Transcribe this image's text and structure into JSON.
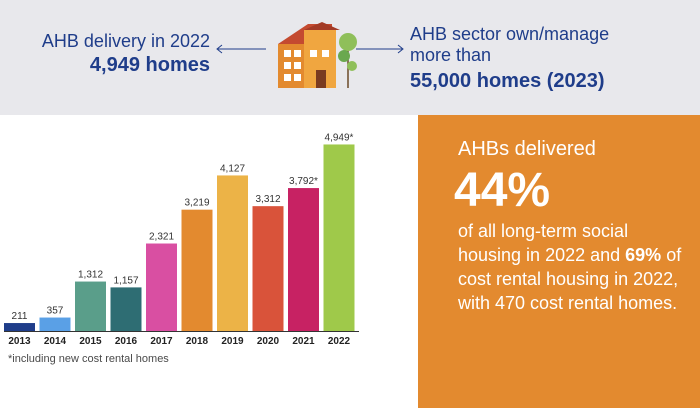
{
  "header": {
    "delivery_label": "AHB delivery in 2022",
    "delivery_value": "4,949 homes",
    "sector_label_line1": "AHB sector own/manage",
    "sector_label_line2": "more than",
    "sector_value": "55,000 homes (2023)"
  },
  "stat": {
    "heading": "AHBs delivered",
    "big": "44%",
    "text_part1": "of all long-term social housing in 2022 and ",
    "text_bold": "69%",
    "text_part2": " of cost rental housing in 2022, with 470 cost rental homes."
  },
  "footnote": "*including new cost rental homes",
  "colors": {
    "header_text": "#1f3d8a",
    "panel_bg": "#e38a2f"
  },
  "chart_data": {
    "type": "bar",
    "categories": [
      "2013",
      "2014",
      "2015",
      "2016",
      "2017",
      "2018",
      "2019",
      "2020",
      "2021",
      "2022"
    ],
    "values": [
      211,
      357,
      1312,
      1157,
      2321,
      3219,
      4127,
      3312,
      3792,
      4949
    ],
    "data_labels": [
      "211",
      "357",
      "1,312",
      "1,157",
      "2,321",
      "3,219",
      "4,127",
      "3,312",
      "3,792*",
      "4,949*"
    ],
    "bar_colors": [
      "#1f3d8a",
      "#5aa0e6",
      "#5a9e8a",
      "#2e6d73",
      "#d94fa2",
      "#e38a2f",
      "#ecb347",
      "#d9533a",
      "#c72263",
      "#9fc94a"
    ],
    "title": "",
    "xlabel": "",
    "ylabel": "",
    "ylim": [
      0,
      5200
    ],
    "grid": false,
    "legend": "none"
  }
}
